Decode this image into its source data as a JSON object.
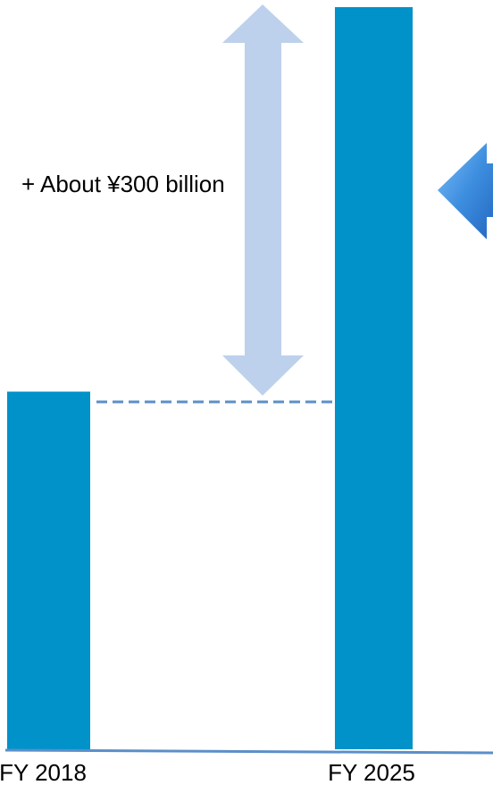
{
  "chart_data": {
    "type": "bar",
    "categories": [
      "FY 2018",
      "FY 2025"
    ],
    "values": [
      400,
      830
    ],
    "title": "",
    "xlabel": "",
    "ylabel": "",
    "ylim": [
      0,
      830
    ],
    "grid": false,
    "legend": "none",
    "annotation": {
      "text": "+ About ¥300 billion",
      "from_category": "FY 2018",
      "to_category": "FY 2025"
    }
  },
  "colors": {
    "bar": "#0092c8",
    "axis": "#5b8fc9",
    "arrow": "#bdd1ec",
    "dashed_line": "#5b8fc9",
    "side_arrow": "#3e8fe0",
    "text": "#000000"
  },
  "icons": {
    "side_arrow": "left-arrow-icon"
  }
}
